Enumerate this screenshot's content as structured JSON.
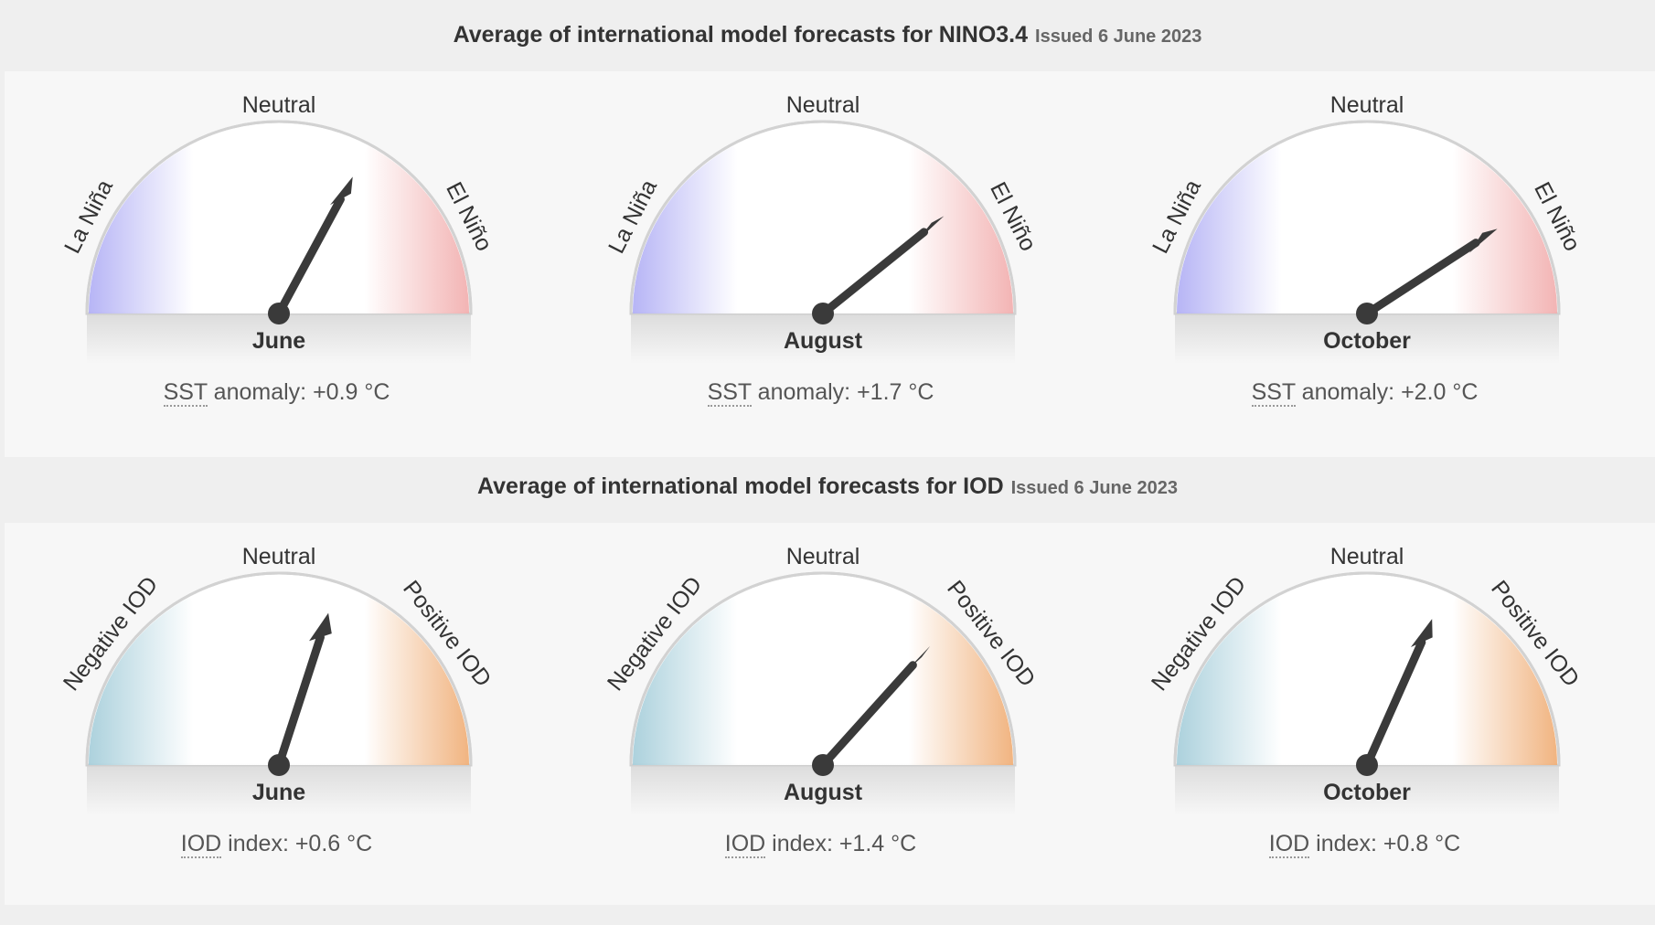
{
  "nino": {
    "title": "Average of international model forecasts for NINO3.4",
    "issued": "Issued 6 June 2023",
    "left_label": "La Niña",
    "center_label": "Neutral",
    "right_label": "El Niño",
    "readout_abbr": "SST",
    "readout_rest": "anomaly:",
    "colors": {
      "left": "#b3b1f5",
      "right": "#f2b0b0"
    },
    "dials": [
      {
        "month": "June",
        "value_text": "+0.9 °C"
      },
      {
        "month": "August",
        "value_text": "+1.7 °C"
      },
      {
        "month": "October",
        "value_text": "+2.0 °C"
      }
    ]
  },
  "iod": {
    "title": "Average of international model forecasts for IOD",
    "issued": "Issued 6 June 2023",
    "left_label": "Negative IOD",
    "center_label": "Neutral",
    "right_label": "Positive IOD",
    "readout_abbr": "IOD",
    "readout_rest": "index:",
    "colors": {
      "left": "#a8cfdb",
      "right": "#f0b07a"
    },
    "dials": [
      {
        "month": "June",
        "value_text": "+0.6 °C"
      },
      {
        "month": "August",
        "value_text": "+1.4 °C"
      },
      {
        "month": "October",
        "value_text": "+0.8 °C"
      }
    ]
  },
  "chart_data": [
    {
      "type": "gauge",
      "title": "Average of international model forecasts for NINO3.4",
      "categories": [
        "June",
        "August",
        "October"
      ],
      "values": [
        0.9,
        1.7,
        2.0
      ],
      "unit": "°C",
      "zones": [
        "La Niña",
        "Neutral",
        "El Niño"
      ]
    },
    {
      "type": "gauge",
      "title": "Average of international model forecasts for IOD",
      "categories": [
        "June",
        "August",
        "October"
      ],
      "values": [
        0.6,
        1.4,
        0.8
      ],
      "unit": "°C",
      "zones": [
        "Negative IOD",
        "Neutral",
        "Positive IOD"
      ]
    }
  ]
}
